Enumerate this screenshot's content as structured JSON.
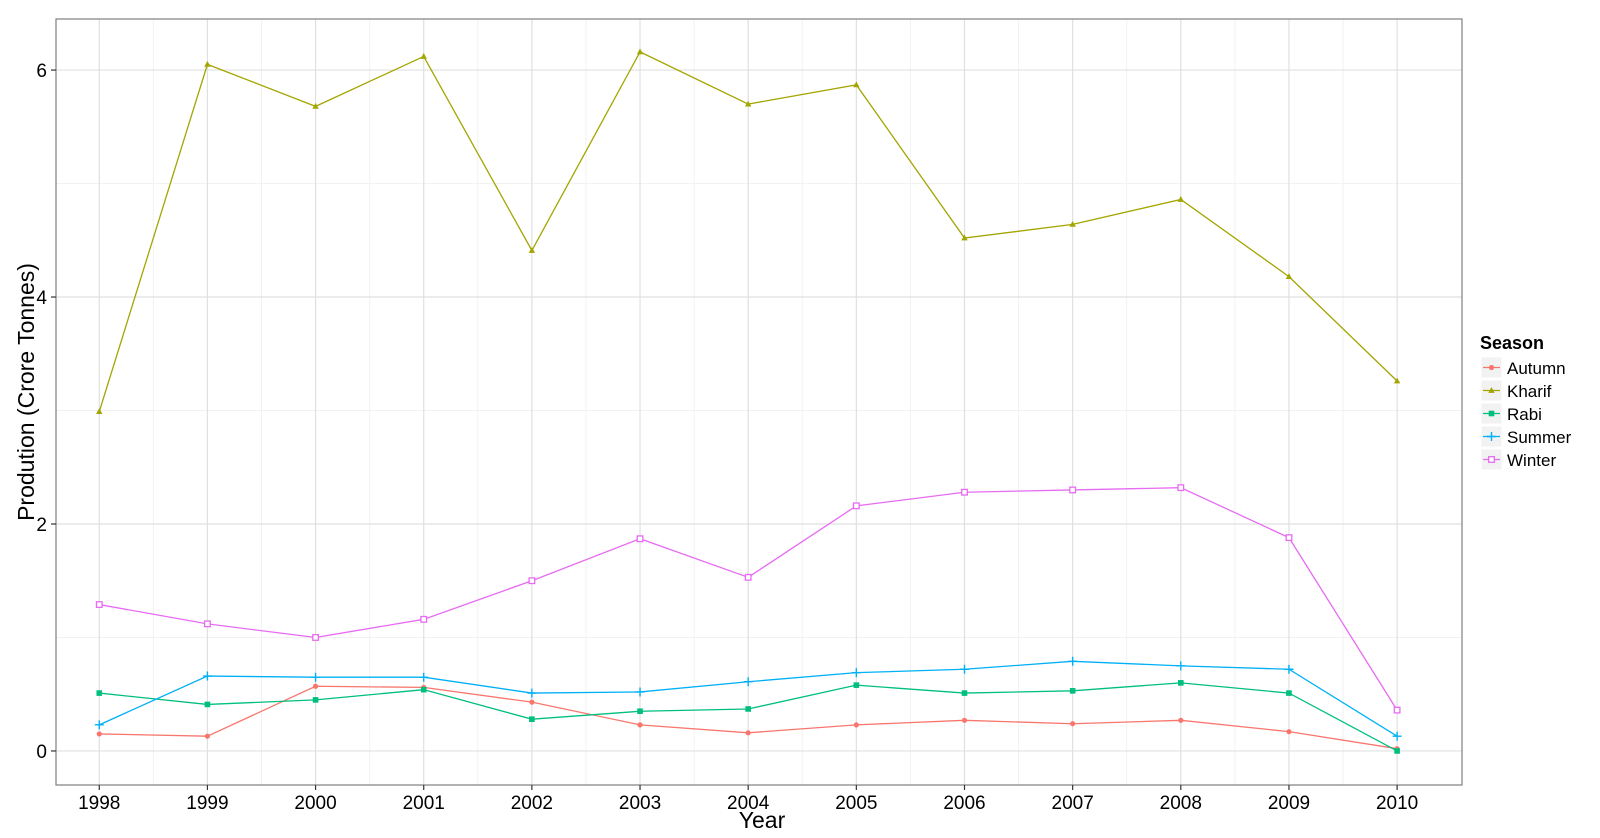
{
  "chart_data": {
    "type": "line",
    "xlabel": "Year",
    "ylabel": "Prodution (Crore Tonnes)",
    "x": [
      1998,
      1999,
      2000,
      2001,
      2002,
      2003,
      2004,
      2005,
      2006,
      2007,
      2008,
      2009,
      2010
    ],
    "x_tick_labels": [
      "1998",
      "1999",
      "2000",
      "2001",
      "2002",
      "2003",
      "2004",
      "2005",
      "2006",
      "2007",
      "2008",
      "2009",
      "2010"
    ],
    "xlim": [
      1997.6,
      2010.6
    ],
    "y_ticks": [
      0,
      2,
      4,
      6
    ],
    "y_tick_labels": [
      "0",
      "2",
      "4",
      "6"
    ],
    "ylim": [
      -0.3,
      6.45
    ],
    "grid": true,
    "legend": {
      "title": "Season",
      "position": "right"
    },
    "series": [
      {
        "name": "Autumn",
        "color": "#F8766D",
        "marker": "circle",
        "values": [
          0.15,
          0.13,
          0.57,
          0.56,
          0.43,
          0.23,
          0.16,
          0.23,
          0.27,
          0.24,
          0.27,
          0.17,
          0.02
        ]
      },
      {
        "name": "Kharif",
        "color": "#A3A500",
        "marker": "triangle",
        "values": [
          2.99,
          6.05,
          5.68,
          6.12,
          4.41,
          6.16,
          5.7,
          5.87,
          4.52,
          4.64,
          4.86,
          4.18,
          3.26
        ]
      },
      {
        "name": "Rabi",
        "color": "#00BF7D",
        "marker": "square",
        "values": [
          0.51,
          0.41,
          0.45,
          0.54,
          0.28,
          0.35,
          0.37,
          0.58,
          0.51,
          0.53,
          0.6,
          0.51,
          0.0
        ]
      },
      {
        "name": "Summer",
        "color": "#00B0F6",
        "marker": "plus",
        "values": [
          0.23,
          0.66,
          0.65,
          0.65,
          0.51,
          0.52,
          0.61,
          0.69,
          0.72,
          0.79,
          0.75,
          0.72,
          0.13
        ]
      },
      {
        "name": "Winter",
        "color": "#E76BF3",
        "marker": "square-open",
        "values": [
          1.29,
          1.12,
          1.0,
          1.16,
          1.5,
          1.87,
          1.53,
          2.16,
          2.28,
          2.3,
          2.32,
          1.88,
          0.36
        ]
      }
    ]
  }
}
